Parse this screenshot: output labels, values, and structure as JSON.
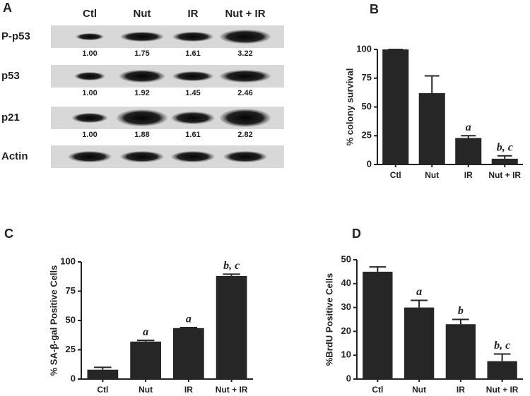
{
  "blot": {
    "label": "A",
    "columns": [
      "Ctl",
      "Nut",
      "IR",
      "Nut + IR"
    ],
    "rows": [
      {
        "name": "P-p53",
        "quant": [
          "1.00",
          "1.75",
          "1.61",
          "3.22"
        ]
      },
      {
        "name": "p53",
        "quant": [
          "1.00",
          "1.92",
          "1.45",
          "2.46"
        ]
      },
      {
        "name": "p21",
        "quant": [
          "1.00",
          "1.88",
          "1.61",
          "2.82"
        ]
      },
      {
        "name": "Actin"
      }
    ]
  },
  "chart_data": [
    {
      "type": "bar",
      "label": "B",
      "ylabel": "% colony survival",
      "categories": [
        "Ctl",
        "Nut",
        "IR",
        "Nut + IR"
      ],
      "values": [
        100,
        62,
        23,
        5
      ],
      "errors": [
        0,
        15,
        2,
        2.5
      ],
      "annotations": [
        null,
        null,
        "a",
        "b, c"
      ],
      "ylim": [
        0,
        100
      ],
      "yticks": [
        0,
        25,
        50,
        75,
        100
      ],
      "color": "#262626"
    },
    {
      "type": "bar",
      "label": "C",
      "ylabel": "% SA-β-gal Positive Cells",
      "categories": [
        "Ctl",
        "Nut",
        "IR",
        "Nut + IR"
      ],
      "values": [
        8,
        32,
        43.5,
        88
      ],
      "errors": [
        2,
        1,
        0.5,
        1.5
      ],
      "annotations": [
        null,
        "a",
        "a",
        "b, c"
      ],
      "ylim": [
        0,
        100
      ],
      "yticks": [
        0,
        25,
        50,
        75,
        100
      ],
      "color": "#262626"
    },
    {
      "type": "bar",
      "label": "D",
      "ylabel": "%BrdU Positive Cells",
      "categories": [
        "Ctl",
        "Nut",
        "IR",
        "Nut + IR"
      ],
      "values": [
        45,
        30,
        23,
        7.5
      ],
      "errors": [
        2,
        3,
        2,
        3
      ],
      "annotations": [
        null,
        "a",
        "b",
        "b, c"
      ],
      "ylim": [
        0,
        50
      ],
      "yticks": [
        0,
        10,
        20,
        30,
        40,
        50
      ],
      "color": "#262626"
    }
  ]
}
